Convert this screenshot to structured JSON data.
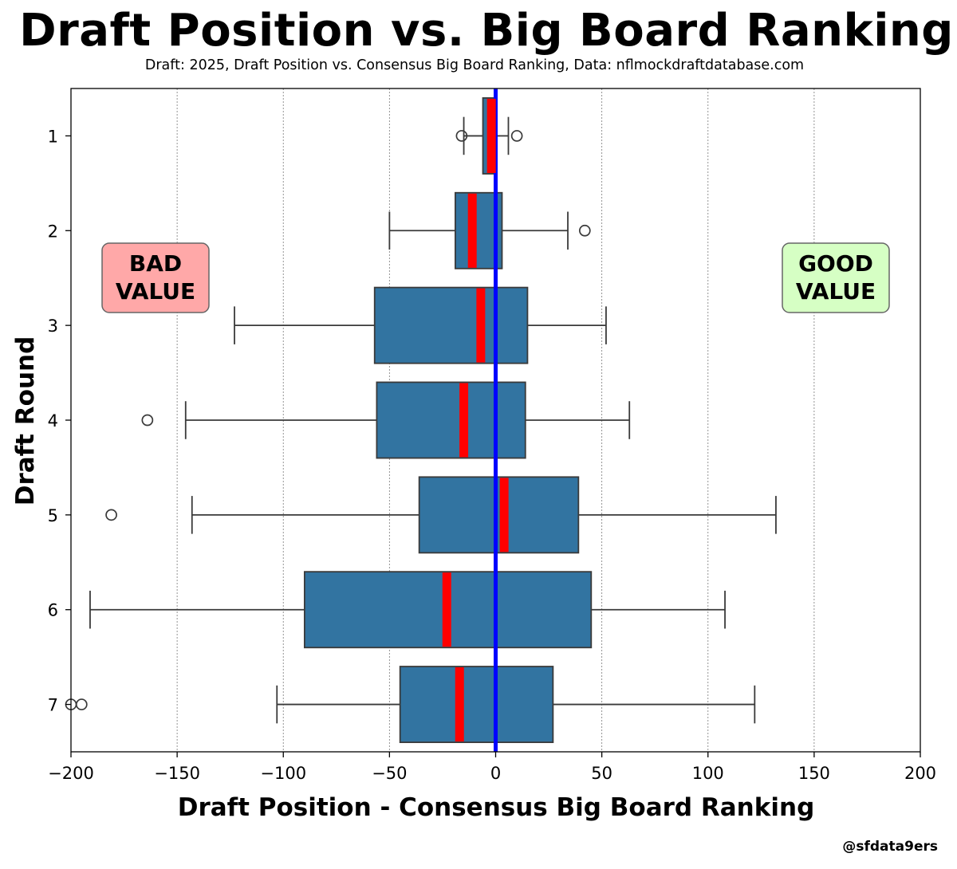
{
  "header": {
    "title": "Draft Position vs. Big Board Ranking",
    "subtitle": "Draft: 2025, Draft Position vs. Consensus Big Board Ranking, Data: nflmockdraftdatabase.com"
  },
  "credit": "@sfdata9ers",
  "annotations": {
    "bad": [
      "BAD",
      "VALUE"
    ],
    "good": [
      "GOOD",
      "VALUE"
    ]
  },
  "colors": {
    "box_fill": "#3274a1",
    "box_edge": "#3a3a3a",
    "median": "#ff0000",
    "zero_line": "#0000ff",
    "bad_bg": "#ffa8a8",
    "good_bg": "#d6ffc4"
  },
  "chart_data": {
    "type": "box",
    "orientation": "horizontal",
    "xlabel": "Draft Position - Consensus Big Board Ranking",
    "ylabel": "Draft Round",
    "xlim": [
      -200,
      200
    ],
    "xticks": [
      -200,
      -150,
      -100,
      -50,
      0,
      50,
      100,
      150,
      200
    ],
    "xtick_labels": [
      "−200",
      "−150",
      "−100",
      "−50",
      "0",
      "50",
      "100",
      "150",
      "200"
    ],
    "grid": "vertical dotted",
    "reference_line_x": 0,
    "categories": [
      "1",
      "2",
      "3",
      "4",
      "5",
      "6",
      "7"
    ],
    "boxes": [
      {
        "round": "1",
        "whisker_low": -15,
        "q1": -6,
        "median": -2,
        "q3": 0,
        "whisker_high": 6,
        "outliers": [
          -16,
          10
        ]
      },
      {
        "round": "2",
        "whisker_low": -50,
        "q1": -19,
        "median": -11,
        "q3": 3,
        "whisker_high": 34,
        "outliers": [
          42
        ]
      },
      {
        "round": "3",
        "whisker_low": -123,
        "q1": -57,
        "median": -7,
        "q3": 15,
        "whisker_high": 52,
        "outliers": []
      },
      {
        "round": "4",
        "whisker_low": -146,
        "q1": -56,
        "median": -15,
        "q3": 14,
        "whisker_high": 63,
        "outliers": [
          -164
        ]
      },
      {
        "round": "5",
        "whisker_low": -143,
        "q1": -36,
        "median": 4,
        "q3": 39,
        "whisker_high": 132,
        "outliers": [
          -181
        ]
      },
      {
        "round": "6",
        "whisker_low": -191,
        "q1": -90,
        "median": -23,
        "q3": 45,
        "whisker_high": 108,
        "outliers": []
      },
      {
        "round": "7",
        "whisker_low": -103,
        "q1": -45,
        "median": -17,
        "q3": 27,
        "whisker_high": 122,
        "outliers": [
          -200,
          -195
        ]
      }
    ]
  }
}
